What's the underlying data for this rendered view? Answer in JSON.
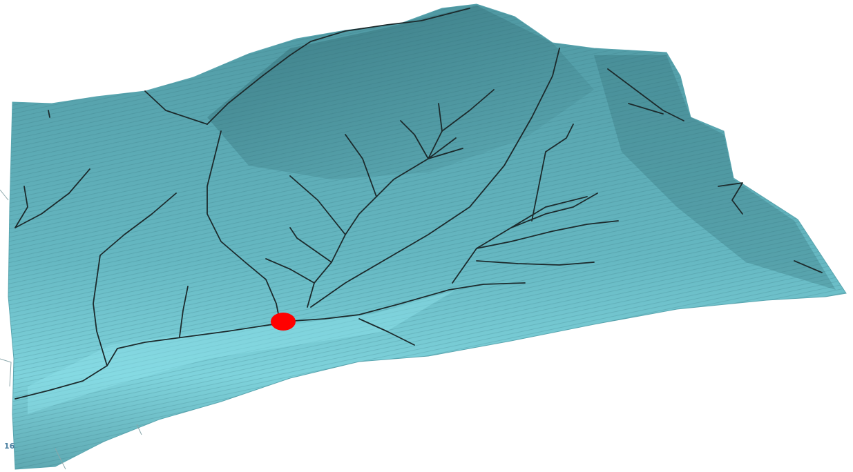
{
  "scene": {
    "corner_label": "16",
    "colors": {
      "terrain_base": "#5fb0bb",
      "terrain_light": "#7fd3dc",
      "terrain_dark": "#3f7f88",
      "streams": "#1c2a2c",
      "marker": "#ff0000"
    }
  },
  "icons": [
    "outlet-marker-icon"
  ]
}
